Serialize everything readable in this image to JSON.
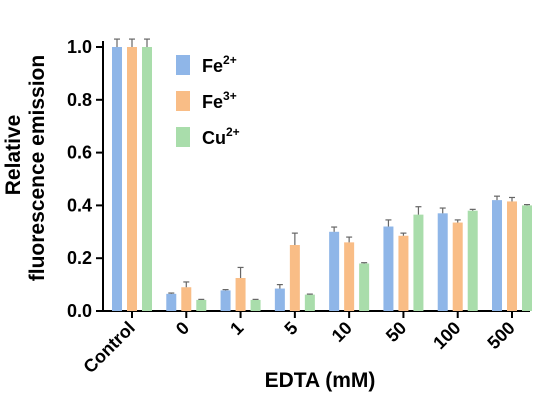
{
  "chart_data": {
    "type": "bar",
    "title": "",
    "xlabel": "EDTA (mM)",
    "ylabel_line1": "Relative",
    "ylabel_line2": "fluorescence emission",
    "ylim": [
      0,
      1.0
    ],
    "yticks": [
      "0.0",
      "0.2",
      "0.4",
      "0.6",
      "0.8",
      "1.0"
    ],
    "categories": [
      "Control",
      "0",
      "1",
      "5",
      "10",
      "50",
      "100",
      "500"
    ],
    "legend_position": "top-right of plot area",
    "series": [
      {
        "name_base": "Fe",
        "name_sup": "2+",
        "color": "#8fb6e8",
        "values": [
          1.0,
          0.065,
          0.078,
          0.085,
          0.3,
          0.32,
          0.37,
          0.42
        ],
        "errors": [
          0.03,
          0.003,
          0.003,
          0.015,
          0.018,
          0.025,
          0.02,
          0.015
        ]
      },
      {
        "name_base": "Fe",
        "name_sup": "3+",
        "color": "#f9bd86",
        "values": [
          1.0,
          0.09,
          0.125,
          0.25,
          0.26,
          0.285,
          0.335,
          0.415
        ],
        "errors": [
          0.03,
          0.02,
          0.04,
          0.045,
          0.02,
          0.01,
          0.01,
          0.015
        ]
      },
      {
        "name_base": "Cu",
        "name_sup": "2+",
        "color": "#a9ddab",
        "values": [
          1.0,
          0.042,
          0.042,
          0.062,
          0.18,
          0.365,
          0.38,
          0.4
        ],
        "errors": [
          0.03,
          0.002,
          0.002,
          0.002,
          0.003,
          0.03,
          0.005,
          0.003
        ]
      }
    ]
  }
}
